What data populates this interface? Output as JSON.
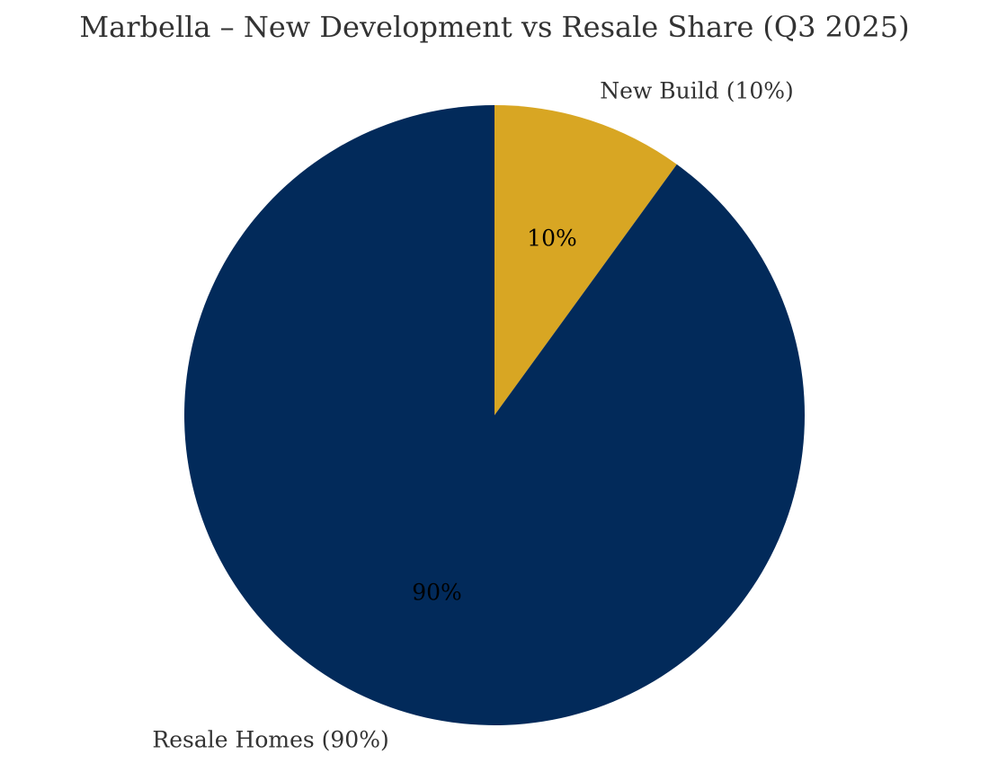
{
  "chart_data": {
    "type": "pie",
    "title": "Marbella – New Development vs Resale Share (Q3 2025)",
    "slices": [
      {
        "label": "New Build (10%)",
        "value": 10,
        "pct_label": "10%",
        "color": "#D8A623"
      },
      {
        "label": "Resale Homes (90%)",
        "value": 90,
        "pct_label": "90%",
        "color": "#022A5A"
      }
    ],
    "start_angle_deg": 90,
    "direction": "clockwise",
    "legend": "none"
  }
}
